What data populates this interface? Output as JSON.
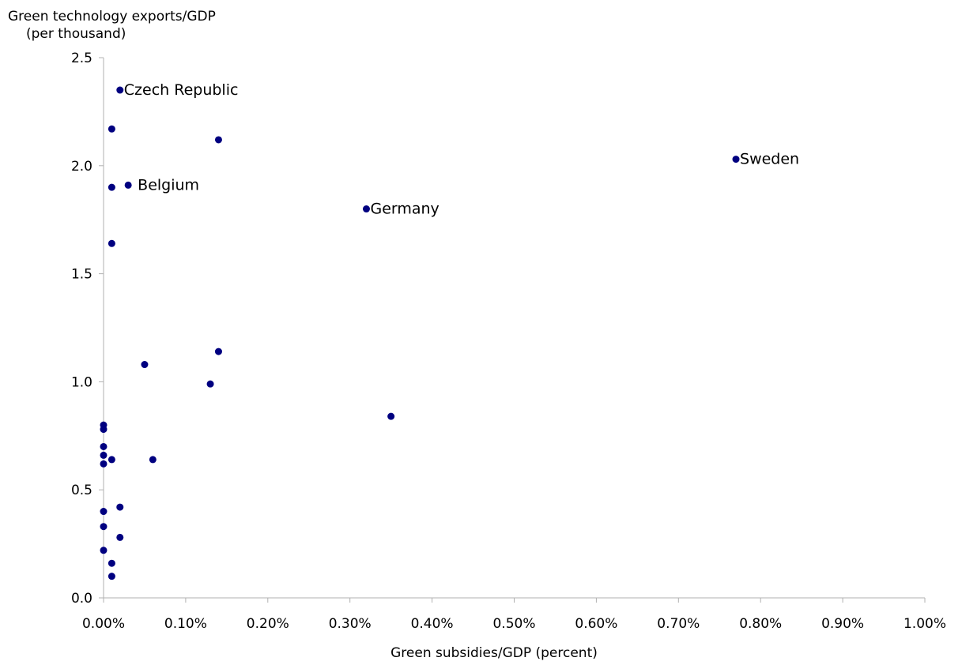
{
  "chart_data": {
    "type": "scatter",
    "ylabel_line1": "Green technology exports/GDP",
    "ylabel_line2": "(per thousand)",
    "xlabel": "Green subsidies/GDP (percent)",
    "xlim": [
      0,
      1.0
    ],
    "ylim": [
      0,
      2.5
    ],
    "x_ticks": [
      {
        "value": 0.0,
        "label": "0.00%"
      },
      {
        "value": 0.1,
        "label": "0.10%"
      },
      {
        "value": 0.2,
        "label": "0.20%"
      },
      {
        "value": 0.3,
        "label": "0.30%"
      },
      {
        "value": 0.4,
        "label": "0.40%"
      },
      {
        "value": 0.5,
        "label": "0.50%"
      },
      {
        "value": 0.6,
        "label": "0.60%"
      },
      {
        "value": 0.7,
        "label": "0.70%"
      },
      {
        "value": 0.8,
        "label": "0.80%"
      },
      {
        "value": 0.9,
        "label": "0.90%"
      },
      {
        "value": 1.0,
        "label": "1.00%"
      }
    ],
    "y_ticks": [
      {
        "value": 0.0,
        "label": "0.0"
      },
      {
        "value": 0.5,
        "label": "0.5"
      },
      {
        "value": 1.0,
        "label": "1.0"
      },
      {
        "value": 1.5,
        "label": "1.5"
      },
      {
        "value": 2.0,
        "label": "2.0"
      },
      {
        "value": 2.5,
        "label": "2.5"
      }
    ],
    "grid": false,
    "marker_color": "#000080",
    "points": [
      {
        "x": 0.02,
        "y": 2.35,
        "label": "Czech Republic"
      },
      {
        "x": 0.01,
        "y": 2.17
      },
      {
        "x": 0.14,
        "y": 2.12
      },
      {
        "x": 0.77,
        "y": 2.03,
        "label": "Sweden"
      },
      {
        "x": 0.01,
        "y": 1.9
      },
      {
        "x": 0.03,
        "y": 1.91,
        "label": "Belgium"
      },
      {
        "x": 0.32,
        "y": 1.8,
        "label": "Germany"
      },
      {
        "x": 0.01,
        "y": 1.64
      },
      {
        "x": 0.14,
        "y": 1.14
      },
      {
        "x": 0.05,
        "y": 1.08
      },
      {
        "x": 0.13,
        "y": 0.99
      },
      {
        "x": 0.35,
        "y": 0.84
      },
      {
        "x": 0.0,
        "y": 0.8
      },
      {
        "x": 0.0,
        "y": 0.78
      },
      {
        "x": 0.0,
        "y": 0.7
      },
      {
        "x": 0.0,
        "y": 0.66
      },
      {
        "x": 0.01,
        "y": 0.64
      },
      {
        "x": 0.06,
        "y": 0.64
      },
      {
        "x": 0.0,
        "y": 0.62
      },
      {
        "x": 0.02,
        "y": 0.42
      },
      {
        "x": 0.0,
        "y": 0.4
      },
      {
        "x": 0.0,
        "y": 0.33
      },
      {
        "x": 0.02,
        "y": 0.28
      },
      {
        "x": 0.0,
        "y": 0.22
      },
      {
        "x": 0.01,
        "y": 0.16
      },
      {
        "x": 0.01,
        "y": 0.1
      }
    ]
  }
}
